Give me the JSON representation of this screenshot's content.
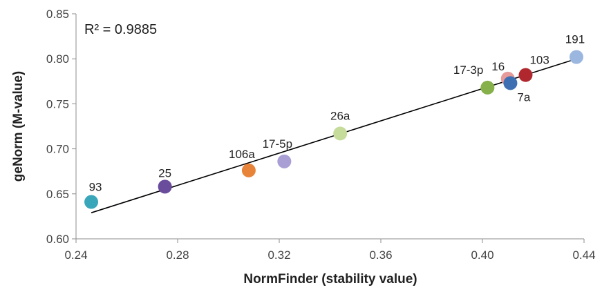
{
  "chart_data": {
    "type": "scatter",
    "xlabel": "NormFinder (stability value)",
    "ylabel": "geNorm (M-value)",
    "annotation": "R² = 0.9885",
    "xlim": [
      0.24,
      0.44
    ],
    "ylim": [
      0.6,
      0.85
    ],
    "x_ticks": [
      "0.24",
      "0.28",
      "0.32",
      "0.36",
      "0.40",
      "0.44"
    ],
    "y_ticks": [
      "0.60",
      "0.65",
      "0.70",
      "0.75",
      "0.80",
      "0.85"
    ],
    "grid": false,
    "points": [
      {
        "label": "93",
        "x": 0.246,
        "y": 0.641,
        "color": "#3aa6b9"
      },
      {
        "label": "25",
        "x": 0.275,
        "y": 0.658,
        "color": "#6a4c9c"
      },
      {
        "label": "106a",
        "x": 0.308,
        "y": 0.676,
        "color": "#e8833a"
      },
      {
        "label": "17-5p",
        "x": 0.322,
        "y": 0.686,
        "color": "#a99fd4"
      },
      {
        "label": "26a",
        "x": 0.344,
        "y": 0.717,
        "color": "#c6dc9a"
      },
      {
        "label": "17-3p",
        "x": 0.402,
        "y": 0.768,
        "color": "#86b04a"
      },
      {
        "label": "16",
        "x": 0.41,
        "y": 0.778,
        "color": "#e79a9a"
      },
      {
        "label": "7a",
        "x": 0.411,
        "y": 0.773,
        "color": "#3f6fb3"
      },
      {
        "label": "103",
        "x": 0.417,
        "y": 0.782,
        "color": "#b0282e"
      },
      {
        "label": "191",
        "x": 0.437,
        "y": 0.802,
        "color": "#9bb7e0"
      }
    ],
    "trendline": {
      "x": [
        0.246,
        0.437
      ],
      "y": [
        0.629,
        0.8
      ],
      "color": "#000000"
    }
  }
}
